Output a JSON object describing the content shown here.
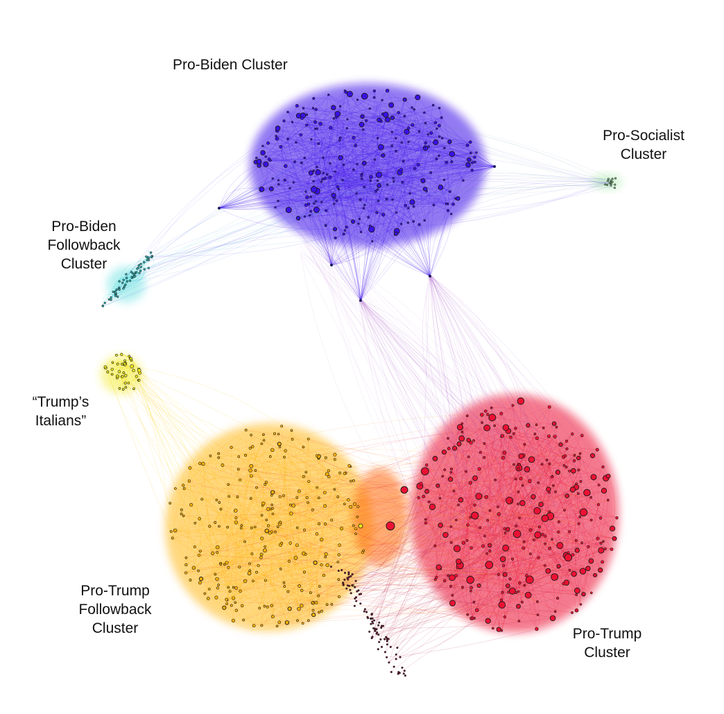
{
  "labels": {
    "pro_biden": [
      "Pro-Biden Cluster"
    ],
    "pro_socialist": [
      "Pro-Socialist",
      "Cluster"
    ],
    "pro_biden_followback": [
      "Pro-Biden",
      "Followback",
      "Cluster"
    ],
    "trumps_italians": [
      "“Trump’s",
      "Italians”"
    ],
    "pro_trump_followback": [
      "Pro-Trump",
      "Followback",
      "Cluster"
    ],
    "pro_trump": [
      "Pro-Trump",
      "Cluster"
    ]
  },
  "colors": {
    "pro_biden": "#3a10e8",
    "pro_socialist": "#8be08b",
    "pro_biden_followback": "#35d6d6",
    "trumps_italians": "#f2ea1c",
    "pro_trump_followback": "#ffb000",
    "pro_trump": "#ec1133",
    "bridge": "#9b3fc0",
    "node_stroke": "#1a1a1a"
  }
}
